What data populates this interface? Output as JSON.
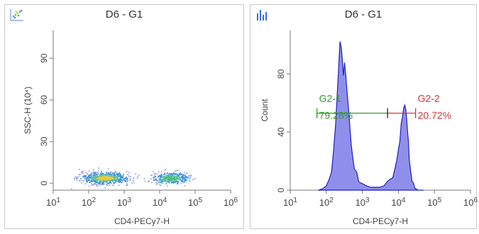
{
  "panels": [
    {
      "title": "D6 - G1",
      "icon": "scatter-plot-icon"
    },
    {
      "title": "D6 - G1",
      "icon": "histogram-icon"
    }
  ],
  "chart_data": [
    {
      "type": "scatter",
      "title": "D6 - G1",
      "xlabel": "CD4-PECy7-H",
      "ylabel": "SSC-H (10⁴)",
      "xscale": "log",
      "xlim": [
        10,
        1000000
      ],
      "ylim": [
        -5,
        110
      ],
      "xticks": [
        10,
        100,
        1000,
        10000,
        100000,
        1000000
      ],
      "xtick_labels": [
        "10 1",
        "10 2",
        "10 3",
        "10 4",
        "10 5",
        "10 6"
      ],
      "yticks": [
        0,
        30,
        60,
        90
      ],
      "ytick_labels": [
        "0",
        "30",
        "60",
        "90"
      ],
      "populations": [
        {
          "name": "",
          "x_center": 280,
          "y_center": 4,
          "x_spread_decades": 0.35,
          "y_spread": 2.2,
          "density": "high",
          "color": "#e8c838"
        },
        {
          "name": "",
          "x_center": 20000,
          "y_center": 4,
          "x_spread_decades": 0.25,
          "y_spread": 2.0,
          "density": "medium",
          "color": "#4ab87a"
        }
      ],
      "grid": false
    },
    {
      "type": "histogram",
      "title": "D6 - G1",
      "xlabel": "CD4-PECy7-H",
      "ylabel": "Count",
      "xscale": "log",
      "xlim": [
        10,
        1000000
      ],
      "ylim": [
        0,
        110
      ],
      "xticks": [
        10,
        100,
        1000,
        10000,
        100000,
        1000000
      ],
      "xtick_labels": [
        "10 1",
        "10 2",
        "10 3",
        "10 4",
        "10 5",
        "10 6"
      ],
      "yticks": [
        0,
        40,
        80
      ],
      "ytick_labels": [
        "0",
        "40",
        "80"
      ],
      "fill_color": "#7b7be8",
      "line_color": "#2020c0",
      "x": [
        60,
        80,
        100,
        120,
        140,
        160,
        180,
        200,
        220,
        240,
        260,
        280,
        300,
        320,
        350,
        380,
        420,
        460,
        500,
        550,
        600,
        700,
        800,
        1000,
        1300,
        1700,
        2200,
        3000,
        4000,
        5000,
        6000,
        7000,
        8000,
        9000,
        10000,
        11000,
        12000,
        13000,
        14000,
        15000,
        16000,
        17000,
        18000,
        19000,
        20000,
        22000,
        24000,
        26000,
        28000,
        30000,
        35000,
        40000,
        50000
      ],
      "y": [
        0,
        1,
        3,
        8,
        15,
        28,
        45,
        65,
        85,
        100,
        96,
        88,
        80,
        86,
        78,
        66,
        55,
        42,
        32,
        22,
        16,
        10,
        7,
        4,
        3,
        2,
        2,
        2,
        3,
        4,
        6,
        9,
        14,
        20,
        28,
        36,
        44,
        52,
        56,
        58,
        55,
        50,
        42,
        32,
        22,
        13,
        7,
        4,
        2,
        1,
        0,
        0,
        0
      ],
      "gates": [
        {
          "name": "G2-1",
          "percent": "79.28%",
          "x_from": 55,
          "x_to": 5000,
          "y": 53,
          "color": "#2a9a2a"
        },
        {
          "name": "G2-2",
          "percent": "20.72%",
          "x_from": 5000,
          "x_to": 30000,
          "y": 53,
          "color": "#d83030"
        }
      ],
      "grid": false
    }
  ]
}
